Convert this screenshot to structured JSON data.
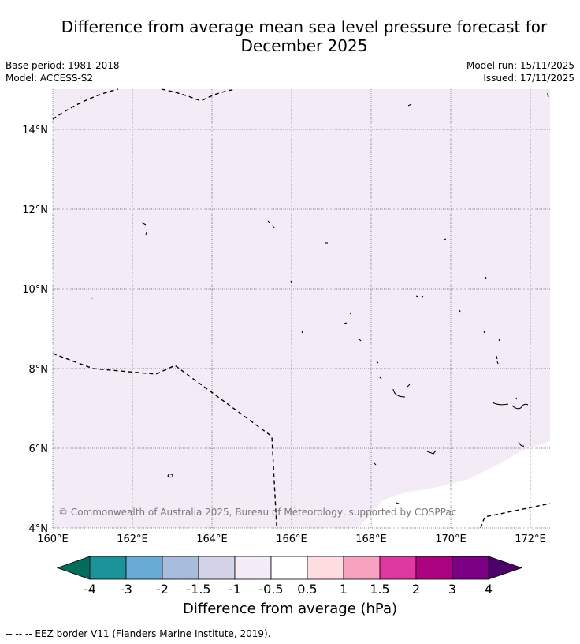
{
  "header": {
    "title_line1": "Difference from average mean sea level pressure forecast for",
    "title_line2": "December 2025",
    "base_period": "Base period: 1981-2018",
    "model": "Model: ACCESS-S2",
    "model_run": "Model run: 15/11/2025",
    "issued": "Issued: 17/11/2025"
  },
  "map": {
    "lon_ticks": [
      "160°E",
      "162°E",
      "164°E",
      "166°E",
      "168°E",
      "170°E",
      "172°E"
    ],
    "lat_ticks": [
      "14°N",
      "12°N",
      "10°N",
      "8°N",
      "6°N",
      "4°N"
    ],
    "lon_range": [
      160,
      172.5
    ],
    "lat_range": [
      4,
      15.1
    ],
    "shading": [
      {
        "class": "-1 to -0.5",
        "color": "#f3ebf5"
      },
      {
        "class": "-0.5 to 0.5",
        "color": "#ffffff"
      }
    ],
    "copyright": "© Commonwealth of Australia 2025, Bureau of Meteorology, supported by COSPPac"
  },
  "colorbar": {
    "colors": [
      "#006e5b",
      "#1c9399",
      "#68acd5",
      "#a8bcdc",
      "#d3d3e8",
      "#f3ebf5",
      "#ffffff",
      "#fedde0",
      "#f7a2bf",
      "#dd3aa0",
      "#ab027f",
      "#7c0083",
      "#4b006a"
    ],
    "tick_labels": [
      "-4",
      "-3",
      "-2",
      "-1.5",
      "-1",
      "-0.5",
      "0.5",
      "1",
      "1.5",
      "2",
      "3",
      "4"
    ],
    "label": "Difference from average (hPa)"
  },
  "footnote": "--  --  -- EEZ border V11 (Flanders Marine Institute, 2019)."
}
